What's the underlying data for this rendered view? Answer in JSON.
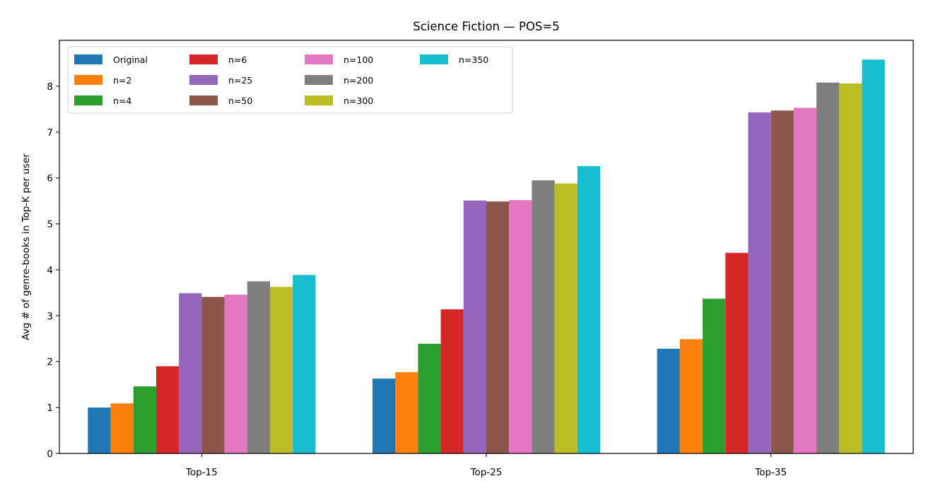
{
  "chart_data": {
    "type": "bar",
    "title": "Science Fiction — POS=5",
    "xlabel": "",
    "ylabel": "Avg # of genre-books in Top-K per user",
    "ylim": [
      0,
      9
    ],
    "yticks": [
      0,
      1,
      2,
      3,
      4,
      5,
      6,
      7,
      8
    ],
    "grid": false,
    "legend_position": "top-left",
    "legend_columns": 4,
    "categories": [
      "Top-15",
      "Top-25",
      "Top-35"
    ],
    "series": [
      {
        "name": "Original",
        "color": "#1f77b4",
        "values": [
          1.0,
          1.63,
          2.28
        ]
      },
      {
        "name": "n=2",
        "color": "#ff7f0e",
        "values": [
          1.09,
          1.77,
          2.49
        ]
      },
      {
        "name": "n=4",
        "color": "#2ca02c",
        "values": [
          1.46,
          2.39,
          3.37
        ]
      },
      {
        "name": "n=6",
        "color": "#d62728",
        "values": [
          1.9,
          3.14,
          4.37
        ]
      },
      {
        "name": "n=25",
        "color": "#9467bd",
        "values": [
          3.49,
          5.51,
          7.43
        ]
      },
      {
        "name": "n=50",
        "color": "#8c564b",
        "values": [
          3.41,
          5.49,
          7.47
        ]
      },
      {
        "name": "n=100",
        "color": "#e377c2",
        "values": [
          3.46,
          5.52,
          7.53
        ]
      },
      {
        "name": "n=200",
        "color": "#7f7f7f",
        "values": [
          3.75,
          5.95,
          8.08
        ]
      },
      {
        "name": "n=300",
        "color": "#bcbd22",
        "values": [
          3.63,
          5.88,
          8.06
        ]
      },
      {
        "name": "n=350",
        "color": "#17becf",
        "values": [
          3.89,
          6.26,
          8.58
        ]
      }
    ]
  }
}
